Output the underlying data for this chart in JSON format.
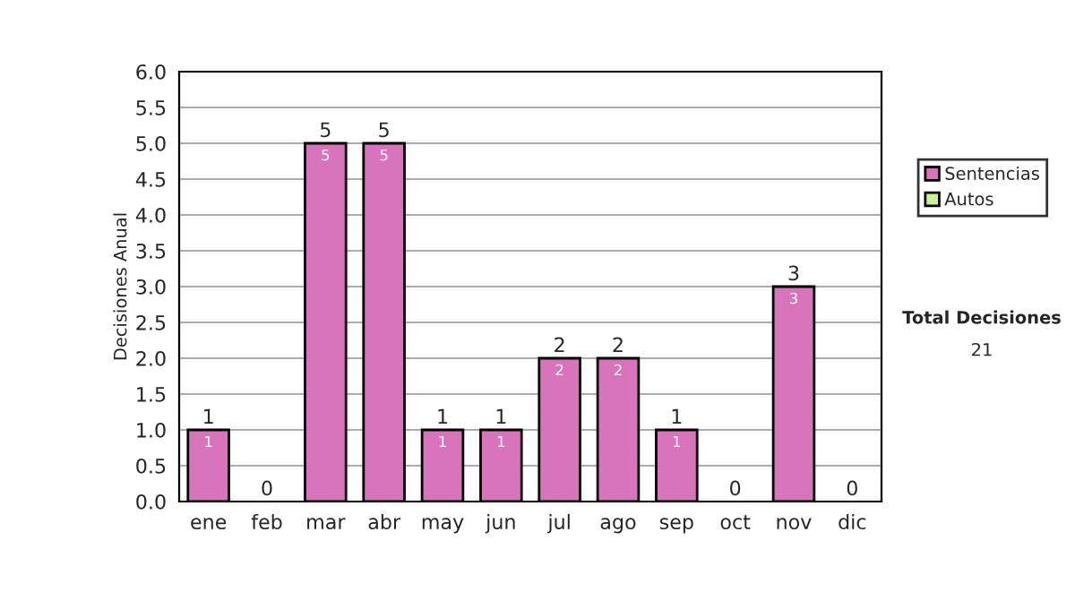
{
  "chart_data": {
    "type": "bar",
    "stacked": true,
    "ylabel": "Decisiones Anual",
    "categories": [
      "ene",
      "feb",
      "mar",
      "abr",
      "may",
      "jun",
      "jul",
      "ago",
      "sep",
      "oct",
      "nov",
      "dic"
    ],
    "series": [
      {
        "name": "Sentencias",
        "color": "#d874bc",
        "values": [
          1,
          0,
          5,
          5,
          1,
          1,
          2,
          2,
          1,
          0,
          3,
          0
        ],
        "value_labels": [
          "1",
          null,
          "5",
          "5",
          "1",
          "1",
          "2",
          "2",
          "1",
          null,
          "3",
          null
        ]
      },
      {
        "name": "Autos",
        "color": "#ccee99",
        "values": [
          0,
          0,
          0,
          0,
          0,
          0,
          0,
          0,
          0,
          0,
          0,
          0
        ]
      }
    ],
    "totals": [
      "1",
      "0",
      "5",
      "5",
      "1",
      "1",
      "2",
      "2",
      "1",
      "0",
      "3",
      "0"
    ],
    "ylim": [
      0,
      6
    ],
    "yticks": [
      {
        "value": 0,
        "label": "0.0"
      },
      {
        "value": 0.5,
        "label": "0.5"
      },
      {
        "value": 1,
        "label": "1.0"
      },
      {
        "value": 1.5,
        "label": "1.5"
      },
      {
        "value": 2,
        "label": "2.0"
      },
      {
        "value": 2.5,
        "label": "2.5"
      },
      {
        "value": 3,
        "label": "3.0"
      },
      {
        "value": 3.5,
        "label": "3.5"
      },
      {
        "value": 4,
        "label": "4.0"
      },
      {
        "value": 4.5,
        "label": "4.5"
      },
      {
        "value": 5,
        "label": "5.0"
      },
      {
        "value": 5.5,
        "label": "5.5"
      },
      {
        "value": 6,
        "label": "6.0"
      }
    ],
    "grid": "y",
    "legend": "right",
    "annotations": [
      "Total Decisiones",
      "21"
    ]
  }
}
